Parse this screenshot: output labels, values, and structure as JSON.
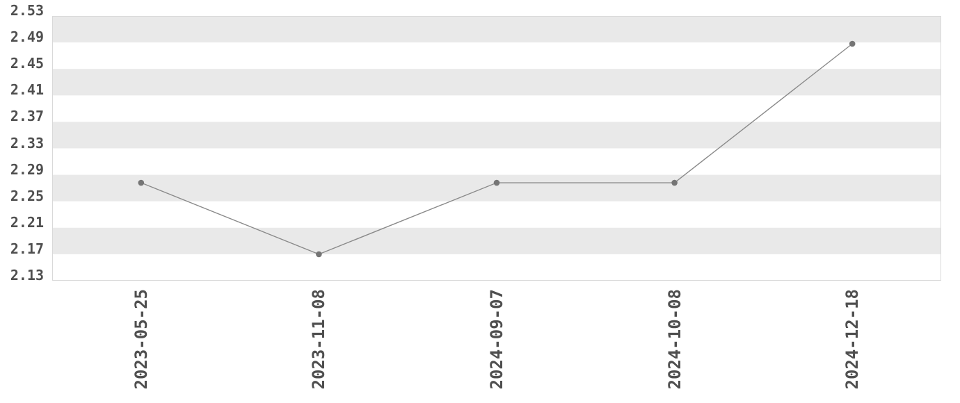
{
  "chart_data": {
    "type": "line",
    "title": "",
    "xlabel": "",
    "ylabel": "",
    "categories": [
      "2023-05-25",
      "2023-11-08",
      "2024-09-07",
      "2024-10-08",
      "2024-12-18"
    ],
    "values": [
      2.278,
      2.17,
      2.278,
      2.278,
      2.488
    ],
    "y_ticks": [
      2.53,
      2.49,
      2.45,
      2.41,
      2.37,
      2.33,
      2.29,
      2.25,
      2.21,
      2.17,
      2.13
    ],
    "y_tick_labels": [
      "2.53",
      "2.49",
      "2.45",
      "2.41",
      "2.37",
      "2.33",
      "2.29",
      "2.25",
      "2.21",
      "2.17",
      "2.13"
    ],
    "ylim": [
      2.13,
      2.53
    ],
    "x_tick_rotation_deg": -90,
    "grid": "alternating-horizontal-bands",
    "legend": "none",
    "colors": {
      "background": "#ffffff",
      "band": "#e9e9e9",
      "plot_border": "#d9d9d9",
      "line": "#8a8a8a",
      "marker": "#757575",
      "tick_text": "#4f4f4f"
    }
  }
}
